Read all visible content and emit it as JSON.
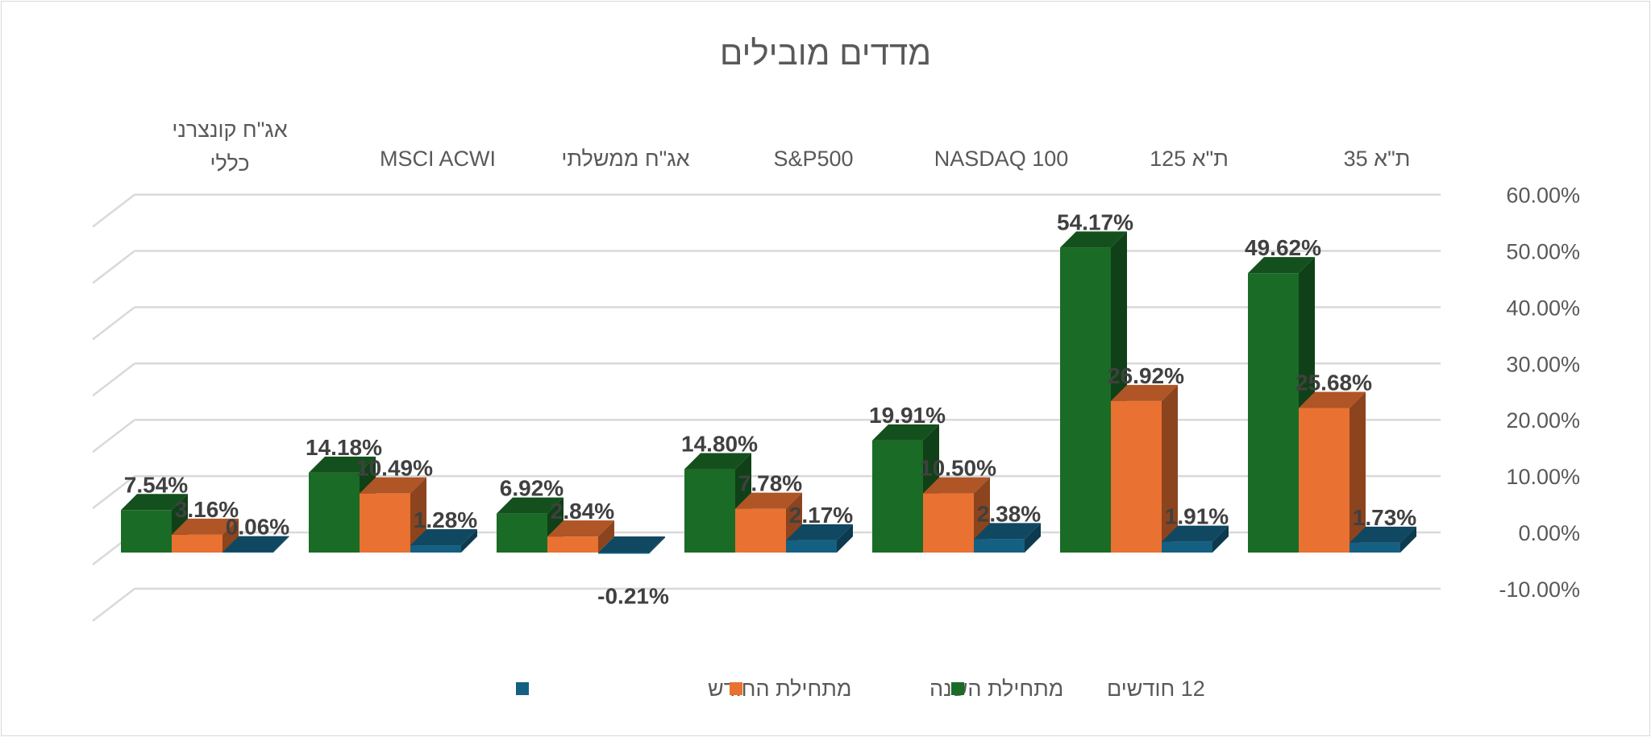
{
  "chart_data": {
    "type": "bar",
    "title": "מדדים מובילים",
    "categories": [
      "ת\"א 35",
      "ת\"א 125",
      "NASDAQ 100",
      "S&P500",
      "אג\"ח ממשלתי",
      "MSCI ACWI",
      "אג\"ח קונצרני כללי"
    ],
    "direction": "rtl",
    "series": [
      {
        "name": "12 חודשים",
        "color": "#1a6b26",
        "values": [
          49.62,
          54.17,
          19.91,
          14.8,
          6.92,
          14.18,
          7.54
        ]
      },
      {
        "name": "מתחילת השנה",
        "color": "#e97132",
        "values": [
          25.68,
          26.92,
          10.5,
          7.78,
          2.84,
          10.49,
          3.16
        ]
      },
      {
        "name": "מתחילת החודש",
        "color": "#156082",
        "values": [
          1.73,
          1.91,
          2.38,
          2.17,
          -0.21,
          1.28,
          0.06
        ]
      }
    ],
    "ylim": [
      -10,
      60
    ],
    "yticks": [
      "-10.00%",
      "0.00%",
      "10.00%",
      "20.00%",
      "30.00%",
      "40.00%",
      "50.00%",
      "60.00%"
    ],
    "ytick_values": [
      -10,
      0,
      10,
      20,
      30,
      40,
      50,
      60
    ],
    "xlabel": "",
    "ylabel": "",
    "grid": true,
    "legend_position": "bottom",
    "legend_order": [
      "מתחילת החודש",
      "מתחילת השנה",
      "12 חודשים"
    ]
  }
}
